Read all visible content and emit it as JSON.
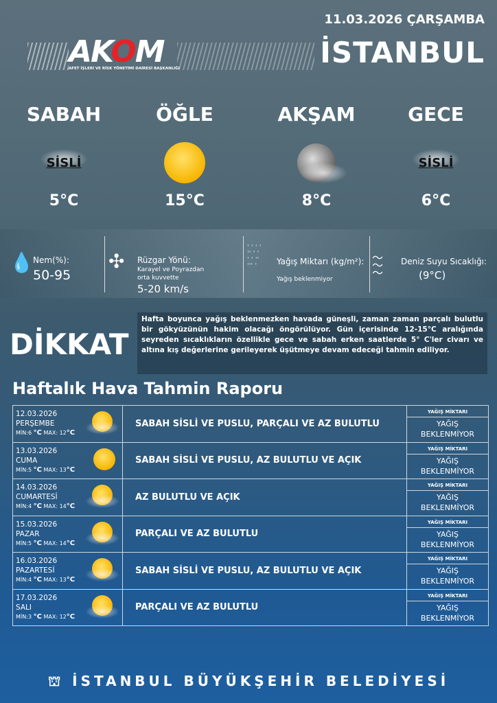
{
  "header": {
    "date": "11.03.2026 ÇARŞAMBA",
    "city": "İSTANBUL",
    "logo_text": "AKOM",
    "logo_subtitle": "AFET İŞLERİ VE RİSK YÖNETİMİ DAİRESİ BAŞKANLIĞI"
  },
  "periods": [
    {
      "name": "SABAH",
      "condition": "SİSLİ",
      "icon": "fog-cloud-icon",
      "temp": "5°C"
    },
    {
      "name": "ÖĞLE",
      "condition": "",
      "icon": "sun-icon",
      "temp": "15°C"
    },
    {
      "name": "AKŞAM",
      "condition": "",
      "icon": "moon-cloud-icon",
      "temp": "8°C"
    },
    {
      "name": "GECE",
      "condition": "SİSLİ",
      "icon": "fog-cloud-icon",
      "temp": "6°C"
    }
  ],
  "details": {
    "humidity": {
      "label": "Nem(%):",
      "value": "50-95"
    },
    "wind": {
      "label": "Rüzgar Yönü:",
      "desc1": "Karayel ve Poyrazdan",
      "desc2": "orta kuvvette",
      "value": "5-20 km/s"
    },
    "rain": {
      "label": "Yağış Miktarı (kg/m²):",
      "value": "Yağış beklenmiyor"
    },
    "sea": {
      "label": "Deniz Suyu Sıcaklığı:",
      "value": "(9°C)"
    }
  },
  "warning": {
    "title": "DİKKAT",
    "text": "Hafta boyunca yağış beklenmezken havada güneşli, zaman zaman parçalı bulutlu bir gökyüzünün hakim olacağı öngörülüyor. Gün içerisinde 12-15°C aralığında seyreden sıcaklıkların özellikle gece ve sabah erken saatlerde 5° C'ler civarı ve altına kış değerlerine gerileyerek üşütmeye devam edeceği tahmin ediliyor."
  },
  "weekly": {
    "title": "Haftalık Hava Tahmin Raporu",
    "rain_header": "YAĞIŞ MİKTARI",
    "rows": [
      {
        "date": "12.03.2026",
        "day": "PERŞEMBE",
        "min": "6",
        "max": "12",
        "desc": "SABAH SİSLİ VE PUSLU, PARÇALI VE AZ BULUTLU",
        "rain1": "YAĞIŞ",
        "rain2": "BEKLENMİYOR",
        "icon": "sun-cloud-icon"
      },
      {
        "date": "13.03.2026",
        "day": "CUMA",
        "min": "5",
        "max": "13",
        "desc": "SABAH SİSLİ VE PUSLU, AZ BULUTLU VE AÇIK",
        "rain1": "YAĞIŞ",
        "rain2": "BEKLENMİYOR",
        "icon": "sun-icon"
      },
      {
        "date": "14.03.2026",
        "day": "CUMARTESİ",
        "min": "4",
        "max": "14",
        "desc": "AZ BULUTLU VE AÇIK",
        "rain1": "YAĞIŞ",
        "rain2": "BEKLENMİYOR",
        "icon": "sun-cloud-icon"
      },
      {
        "date": "15.03.2026",
        "day": "PAZAR",
        "min": "5",
        "max": "14",
        "desc": "PARÇALI VE AZ BULUTLU",
        "rain1": "YAĞIŞ",
        "rain2": "BEKLENMİYOR",
        "icon": "sun-cloud-icon"
      },
      {
        "date": "16.03.2026",
        "day": "PAZARTESİ",
        "min": "4",
        "max": "13",
        "desc": "SABAH SİSLİ VE PUSLU, AZ BULUTLU VE AÇIK",
        "rain1": "YAĞIŞ",
        "rain2": "BEKLENMİYOR",
        "icon": "sun-cloud-icon"
      },
      {
        "date": "17.03.2026",
        "day": "SALI",
        "min": "3",
        "max": "12",
        "desc": "PARÇALI VE AZ BULUTLU",
        "rain1": "YAĞIŞ",
        "rain2": "BEKLENMİYOR",
        "icon": "sun-cloud-icon"
      }
    ]
  },
  "labels": {
    "min": "MİN:",
    "max": "MAX:",
    "unit": "°C"
  },
  "footer": {
    "text": "İSTANBUL BÜYÜKŞEHİR BELEDİYESİ"
  }
}
